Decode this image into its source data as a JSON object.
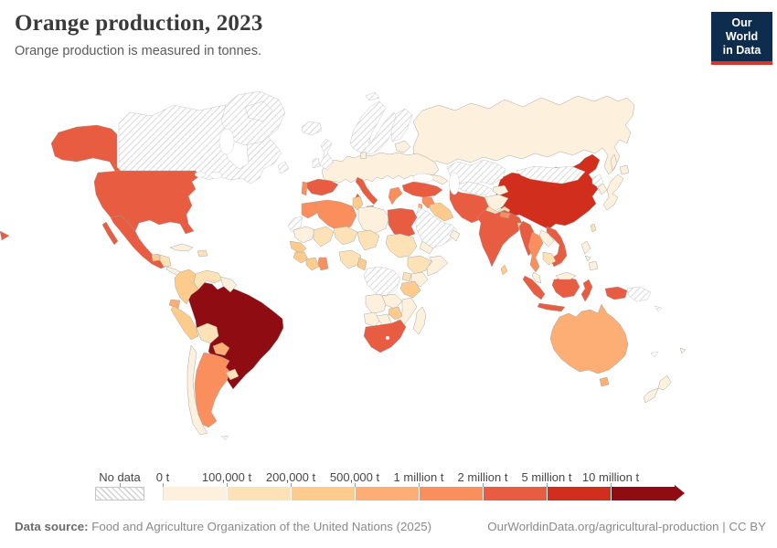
{
  "header": {
    "title": "Orange production, 2023",
    "subtitle": "Orange production is measured in tonnes.",
    "logo": {
      "line1": "Our World",
      "line2": "in Data",
      "bg": "#0E2D4E",
      "accent": "#D8352A"
    }
  },
  "footer": {
    "source_label": "Data source:",
    "source_text": " Food and Agriculture Organization of the United Nations (2025)",
    "link_text": "OurWorldinData.org/agricultural-production | CC BY"
  },
  "chart_data": {
    "type": "choropleth",
    "title": "Orange production, 2023",
    "subtitle": "Orange production is measured in tonnes.",
    "unit": "tonnes",
    "legend": {
      "no_data_label": "No data",
      "boundary_labels": [
        "0 t",
        "100,000 t",
        "200,000 t",
        "500,000 t",
        "1 million t",
        "2 million t",
        "5 million t",
        "10 million t"
      ],
      "bin_colors": [
        "#FDF0DC",
        "#FDE2B8",
        "#FDCC8C",
        "#FCAE74",
        "#FB8E5D",
        "#E85C41",
        "#D22E1E",
        "#8F0D12"
      ],
      "no_data_pattern": "hatch"
    },
    "countries": {
      "greenland": "no-data",
      "canada": "no-data",
      "baffin-island": "no-data",
      "newfoundland": "no-data",
      "iceland": "no-data",
      "svalbard": "no-data",
      "united-kingdom": "no-data",
      "ireland": "no-data",
      "norway-sweden": "no-data",
      "finland": "no-data",
      "kazakhstan": "no-data",
      "mongolia": "no-data",
      "uzbekistan-turkmenistan": "no-data",
      "saudi-arabia": "no-data",
      "western-sahara": "no-data",
      "dr-congo": "no-data",
      "north-korea": "no-data",
      "papua-new-guinea": "no-data",
      "solomon-islands": "no-data",
      "new-caledonia": "no-data",
      "falkland-islands": "no-data",
      "russia": 1,
      "sakhalin": 1,
      "europe-mainland": 1,
      "denmark": 1,
      "baltic-states": 1,
      "caucasus": 1,
      "kyrgyzstan-tajikistan": 1,
      "afghanistan": 1,
      "yemen": 1,
      "oman": 1,
      "libya": 1,
      "mauritania": 1,
      "somalia": 1,
      "kenya": 1,
      "angola": 1,
      "zambia": 1,
      "mozambique": 1,
      "namibia": 1,
      "botswana": 1,
      "madagascar": 1,
      "chile": 1,
      "cuba": 1,
      "guyana-suriname": 1,
      "costa-rica-panama": 1,
      "laos": 1,
      "malaysia": 1,
      "malaysia-borneo": 1,
      "philippines-luzon": 1,
      "philippines-visayas": 1,
      "philippines-mindanao": 1,
      "japan": 1,
      "hokkaido": 1,
      "south-korea": 1,
      "new-zealand-north": 1,
      "new-zealand-south": 1,
      "fiji": 1,
      "venezuela": 2,
      "bolivia": 2,
      "uruguay": 2,
      "hispaniola": 2,
      "honduras-nicaragua": 2,
      "mali": 2,
      "niger": 2,
      "chad": 2,
      "sudan": 2,
      "nigeria": 2,
      "ethiopia": 2,
      "uganda": 2,
      "pakistan": 2,
      "cambodia": 2,
      "taiwan": 2,
      "colombia": 3,
      "peru": 3,
      "guatemala": 3,
      "senegal": 3,
      "guinea": 3,
      "ivory-coast": 3,
      "cameroon": 3,
      "tanzania": 3,
      "zimbabwe": 3,
      "tunisia": 3,
      "iraq": 3,
      "bangladesh": 3,
      "sri-lanka": 3,
      "ecuador": 4,
      "paraguay": 4,
      "australia": 4,
      "tasmania": 4,
      "israel": 4,
      "argentina": 5,
      "portugal": 5,
      "greece": 5,
      "morocco": 5,
      "algeria": 5,
      "ghana": 5,
      "syria": 5,
      "nepal": 5,
      "thailand": 5,
      "united-states": 6,
      "alaska": 6,
      "hawaii": 6,
      "mexico": 6,
      "spain": 6,
      "italy": 6,
      "sicily": 6,
      "sardinia": 6,
      "turkey": 6,
      "egypt": 6,
      "iran": 6,
      "india": 6,
      "myanmar": 6,
      "vietnam": 6,
      "south-africa": 6,
      "sumatra": 6,
      "java": 6,
      "borneo": 6,
      "sulawesi": 6,
      "indonesian-papua": 6,
      "china": 7,
      "brazil": 8
    }
  }
}
